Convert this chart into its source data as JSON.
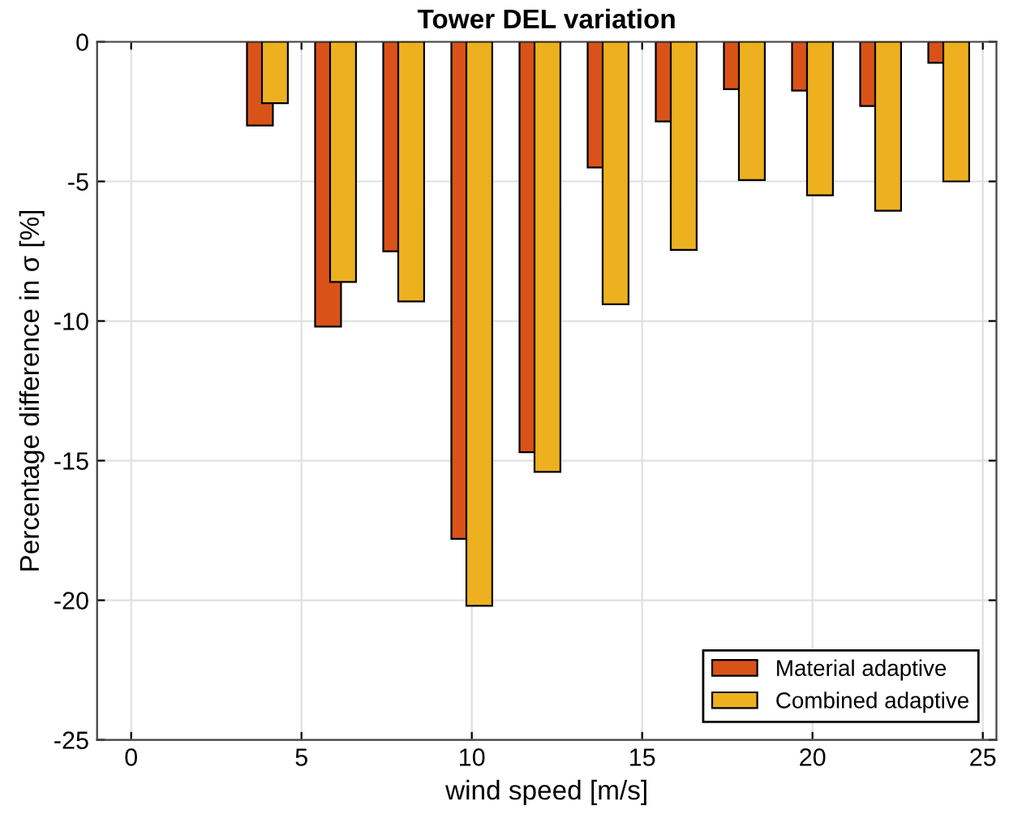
{
  "chart_data": {
    "type": "bar",
    "title": "Tower DEL variation",
    "xlabel": "wind speed [m/s]",
    "ylabel": "Percentage difference in σ [%]",
    "x": [
      4,
      6,
      8,
      10,
      12,
      14,
      16,
      18,
      20,
      22,
      24
    ],
    "series": [
      {
        "name": "Material adaptive",
        "color": "#d95319",
        "values": [
          -3.0,
          -10.2,
          -7.5,
          -17.8,
          -14.7,
          -4.5,
          -2.85,
          -1.7,
          -1.75,
          -2.3,
          -0.75
        ]
      },
      {
        "name": "Combined adaptive",
        "color": "#edb120",
        "values": [
          -2.2,
          -8.6,
          -9.3,
          -20.2,
          -15.4,
          -9.4,
          -7.45,
          -4.95,
          -5.5,
          -6.05,
          -5.0
        ]
      }
    ],
    "xlim": [
      -1,
      25.4
    ],
    "ylim": [
      -25,
      0
    ],
    "xticks": [
      0,
      5,
      10,
      15,
      20,
      25
    ],
    "yticks": [
      -25,
      -20,
      -15,
      -10,
      -5,
      0
    ],
    "grid": true,
    "legend": "bottom right"
  }
}
